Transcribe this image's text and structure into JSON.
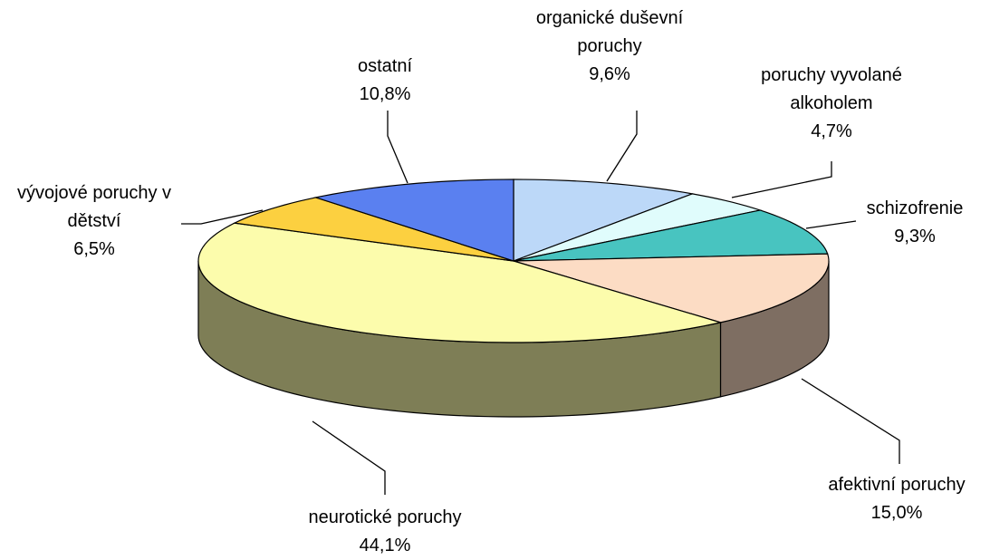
{
  "chart_data": {
    "type": "pie",
    "categories": [
      "organické duševní poruchy",
      "poruchy vyvolané alkoholem",
      "schizofrenie",
      "afektivní poruchy",
      "neurotické poruchy",
      "vývojové poruchy v dětství",
      "ostatní"
    ],
    "values": [
      9.6,
      4.7,
      9.3,
      15.0,
      44.1,
      6.5,
      10.8
    ],
    "value_labels": [
      "9,6%",
      "4,7%",
      "9,3%",
      "15,0%",
      "44,1%",
      "6,5%",
      "10,8%"
    ],
    "colors": [
      "#bcd8f8",
      "#e0fcfc",
      "#48c4c0",
      "#fcdcc4",
      "#fcfcac",
      "#fcd040",
      "#5a80f0"
    ]
  }
}
